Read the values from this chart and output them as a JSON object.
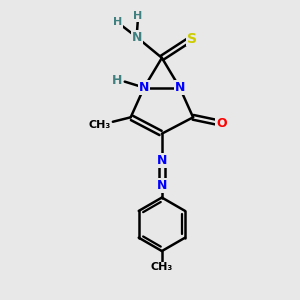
{
  "background_color": "#e8e8e8",
  "atom_colors": {
    "N": "#0000ff",
    "O": "#ff0000",
    "S": "#cccc00",
    "C": "#000000",
    "H": "#408080"
  },
  "bond_color": "#000000",
  "figsize": [
    3.0,
    3.0
  ],
  "dpi": 100
}
